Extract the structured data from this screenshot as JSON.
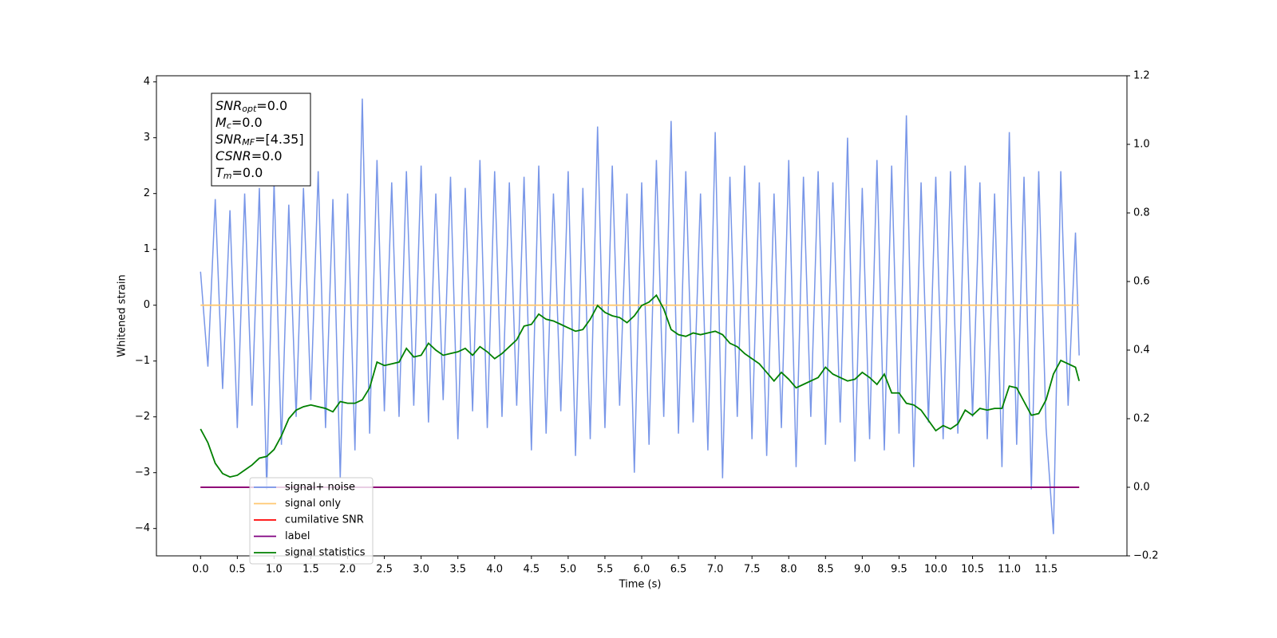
{
  "chart_data": {
    "type": "line",
    "xlabel": "Time (s)",
    "ylabel": "Whitened strain",
    "xlim": [
      -0.6,
      12.6
    ],
    "ylim": [
      -4.49,
      4.11
    ],
    "y2lim": [
      -0.2,
      1.2
    ],
    "xticks": [
      {
        "value": 0,
        "label": "0.0"
      },
      0.5,
      {
        "value": 1,
        "label": "1.0"
      },
      1.5,
      {
        "value": 2,
        "label": "2.0"
      },
      2.5,
      {
        "value": 3,
        "label": "3.0"
      },
      3.5,
      {
        "value": 4,
        "label": "4.0"
      },
      4.5,
      {
        "value": 5,
        "label": "5.0"
      },
      5.5,
      {
        "value": 6,
        "label": "6.0"
      },
      6.5,
      {
        "value": 7,
        "label": "7.0"
      },
      7.5,
      {
        "value": 8,
        "label": "8.0"
      },
      8.5,
      {
        "value": 9,
        "label": "9.0"
      },
      9.5,
      {
        "value": 10,
        "label": "10.0"
      },
      10.5,
      {
        "value": 11,
        "label": "11.0"
      },
      11.5
    ],
    "yticks": [
      {
        "value": -4,
        "label": "−4"
      },
      {
        "value": -3,
        "label": "−3"
      },
      {
        "value": -2,
        "label": "−2"
      },
      {
        "value": -1,
        "label": "−1"
      },
      0,
      1,
      2,
      3,
      4
    ],
    "y2ticks": [
      {
        "value": -0.2,
        "label": "−0.2"
      },
      {
        "value": 0,
        "label": "0.0"
      },
      0.2,
      0.4,
      0.6,
      0.8,
      {
        "value": 1,
        "label": "1.0"
      },
      {
        "value": 1.2,
        "label": "1.2"
      }
    ],
    "grid": false,
    "legend": "lower left",
    "annotation": [
      {
        "main": "SNR",
        "sub": "opt",
        "rest": "=0.0"
      },
      {
        "main": "M",
        "sub": "c",
        "rest": "=0.0"
      },
      {
        "main": "SNR",
        "sub": "MF",
        "rest": "=[4.35]"
      },
      {
        "main": "CSNR",
        "sub": null,
        "rest": "=0.0"
      },
      {
        "main": "T",
        "sub": "m",
        "rest": "=0.0"
      }
    ],
    "series": [
      {
        "name": "signal+ noise",
        "color": "#7896e8",
        "x": [
          0.0,
          0.1,
          0.2,
          0.3,
          0.4,
          0.5,
          0.6,
          0.7,
          0.8,
          0.9,
          1.0,
          1.1,
          1.2,
          1.3,
          1.4,
          1.5,
          1.6,
          1.7,
          1.8,
          1.9,
          2.0,
          2.1,
          2.2,
          2.3,
          2.4,
          2.5,
          2.6,
          2.7,
          2.8,
          2.9,
          3.0,
          3.1,
          3.2,
          3.3,
          3.4,
          3.5,
          3.6,
          3.7,
          3.8,
          3.9,
          4.0,
          4.1,
          4.2,
          4.3,
          4.4,
          4.5,
          4.6,
          4.7,
          4.8,
          4.9,
          5.0,
          5.1,
          5.2,
          5.3,
          5.4,
          5.5,
          5.6,
          5.7,
          5.8,
          5.9,
          6.0,
          6.1,
          6.2,
          6.3,
          6.4,
          6.5,
          6.6,
          6.7,
          6.8,
          6.9,
          7.0,
          7.1,
          7.2,
          7.3,
          7.4,
          7.5,
          7.6,
          7.7,
          7.8,
          7.9,
          8.0,
          8.1,
          8.2,
          8.3,
          8.4,
          8.5,
          8.6,
          8.7,
          8.8,
          8.9,
          9.0,
          9.1,
          9.2,
          9.3,
          9.4,
          9.5,
          9.6,
          9.7,
          9.8,
          9.9,
          10.0,
          10.1,
          10.2,
          10.3,
          10.4,
          10.5,
          10.6,
          10.7,
          10.8,
          10.9,
          11.0,
          11.1,
          11.2,
          11.3,
          11.4,
          11.5,
          11.6,
          11.7,
          11.8,
          11.9,
          11.95
        ],
        "values": [
          0.6,
          -1.1,
          1.9,
          -1.5,
          1.7,
          -2.2,
          2.0,
          -1.8,
          2.1,
          -3.3,
          2.2,
          -2.5,
          1.8,
          -2.0,
          2.1,
          -1.7,
          2.4,
          -2.2,
          1.9,
          -3.1,
          2.0,
          -2.6,
          3.7,
          -2.3,
          2.6,
          -1.9,
          2.2,
          -2.0,
          2.4,
          -1.8,
          2.5,
          -2.1,
          2.0,
          -1.7,
          2.3,
          -2.4,
          2.1,
          -1.9,
          2.6,
          -2.2,
          2.4,
          -2.0,
          2.2,
          -1.8,
          2.3,
          -2.6,
          2.5,
          -2.3,
          2.0,
          -1.9,
          2.4,
          -2.7,
          2.1,
          -2.4,
          3.2,
          -2.2,
          2.5,
          -1.8,
          2.0,
          -3.0,
          2.2,
          -2.5,
          2.6,
          -2.0,
          3.3,
          -2.3,
          2.4,
          -2.1,
          2.0,
          -2.6,
          3.1,
          -3.1,
          2.3,
          -2.0,
          2.5,
          -2.4,
          2.2,
          -2.7,
          2.0,
          -2.2,
          2.6,
          -2.9,
          2.3,
          -2.0,
          2.4,
          -2.5,
          2.2,
          -2.1,
          3.0,
          -2.8,
          2.1,
          -2.4,
          2.6,
          -2.6,
          2.5,
          -2.3,
          3.4,
          -2.9,
          2.2,
          -2.1,
          2.3,
          -2.4,
          2.4,
          -2.3,
          2.5,
          -2.0,
          2.2,
          -2.4,
          2.0,
          -2.9,
          3.1,
          -2.5,
          2.3,
          -3.3,
          2.4,
          -2.2,
          -4.1,
          2.4,
          -1.8,
          1.3,
          -0.9
        ]
      },
      {
        "name": "signal only",
        "color": "#ffc870",
        "x": [
          0.0,
          11.95
        ],
        "values": [
          0,
          0
        ]
      },
      {
        "name": "cumilative SNR",
        "color": "#ff0000",
        "axis": "y2",
        "x": [
          0.0,
          11.95
        ],
        "values": [
          0,
          0
        ]
      },
      {
        "name": "label",
        "color": "#800080",
        "axis": "y2",
        "x": [
          0.0,
          11.95
        ],
        "values": [
          0,
          0
        ]
      },
      {
        "name": "signal statistics",
        "color": "#008000",
        "axis": "y2",
        "x": [
          0.0,
          0.1,
          0.2,
          0.3,
          0.4,
          0.5,
          0.6,
          0.7,
          0.8,
          0.9,
          1.0,
          1.1,
          1.2,
          1.3,
          1.4,
          1.5,
          1.6,
          1.7,
          1.8,
          1.9,
          2.0,
          2.1,
          2.2,
          2.3,
          2.4,
          2.5,
          2.6,
          2.7,
          2.8,
          2.9,
          3.0,
          3.1,
          3.2,
          3.3,
          3.4,
          3.5,
          3.6,
          3.7,
          3.8,
          3.9,
          4.0,
          4.1,
          4.2,
          4.3,
          4.4,
          4.5,
          4.6,
          4.7,
          4.8,
          4.9,
          5.0,
          5.1,
          5.2,
          5.3,
          5.4,
          5.5,
          5.6,
          5.7,
          5.8,
          5.9,
          6.0,
          6.1,
          6.2,
          6.3,
          6.4,
          6.5,
          6.6,
          6.7,
          6.8,
          6.9,
          7.0,
          7.1,
          7.2,
          7.3,
          7.4,
          7.5,
          7.6,
          7.7,
          7.8,
          7.9,
          8.0,
          8.1,
          8.2,
          8.3,
          8.4,
          8.5,
          8.6,
          8.7,
          8.8,
          8.9,
          9.0,
          9.1,
          9.2,
          9.3,
          9.4,
          9.5,
          9.6,
          9.7,
          9.8,
          9.9,
          10.0,
          10.1,
          10.2,
          10.3,
          10.4,
          10.5,
          10.6,
          10.7,
          10.8,
          10.9,
          11.0,
          11.1,
          11.2,
          11.3,
          11.4,
          11.5,
          11.6,
          11.7,
          11.8,
          11.9,
          11.95
        ],
        "values": [
          0.17,
          0.13,
          0.07,
          0.04,
          0.03,
          0.035,
          0.05,
          0.065,
          0.085,
          0.09,
          0.11,
          0.15,
          0.2,
          0.225,
          0.235,
          0.24,
          0.235,
          0.23,
          0.22,
          0.25,
          0.245,
          0.245,
          0.255,
          0.29,
          0.365,
          0.355,
          0.36,
          0.365,
          0.405,
          0.38,
          0.385,
          0.42,
          0.4,
          0.385,
          0.39,
          0.395,
          0.405,
          0.385,
          0.41,
          0.395,
          0.375,
          0.39,
          0.41,
          0.43,
          0.47,
          0.475,
          0.505,
          0.49,
          0.485,
          0.475,
          0.465,
          0.455,
          0.46,
          0.49,
          0.53,
          0.51,
          0.5,
          0.495,
          0.48,
          0.5,
          0.53,
          0.54,
          0.56,
          0.52,
          0.46,
          0.445,
          0.44,
          0.45,
          0.445,
          0.45,
          0.455,
          0.445,
          0.42,
          0.41,
          0.39,
          0.375,
          0.36,
          0.335,
          0.31,
          0.335,
          0.315,
          0.29,
          0.3,
          0.31,
          0.32,
          0.35,
          0.33,
          0.32,
          0.31,
          0.315,
          0.335,
          0.32,
          0.3,
          0.33,
          0.275,
          0.275,
          0.245,
          0.24,
          0.225,
          0.195,
          0.165,
          0.18,
          0.17,
          0.185,
          0.225,
          0.21,
          0.23,
          0.225,
          0.23,
          0.23,
          0.295,
          0.29,
          0.25,
          0.21,
          0.215,
          0.255,
          0.33,
          0.37,
          0.36,
          0.35,
          0.31
        ]
      }
    ]
  }
}
